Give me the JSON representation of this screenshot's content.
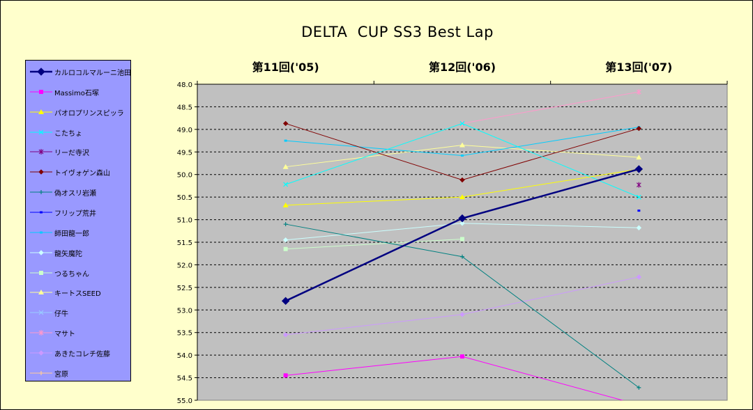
{
  "chart_data": {
    "type": "line",
    "title": "DELTA  CUP SS3 Best Lap",
    "categories": [
      "第11回('05)",
      "第12回('06)",
      "第13回('07)"
    ],
    "ylim": [
      48.0,
      55.0
    ],
    "y_reversed": true,
    "y_ticks": [
      "48.0",
      "48.5",
      "49.0",
      "49.5",
      "50.0",
      "50.5",
      "51.0",
      "51.5",
      "52.0",
      "52.5",
      "53.0",
      "53.5",
      "54.0",
      "54.5",
      "55.0"
    ],
    "grid": "dashed horizontal",
    "legend_position": "left",
    "series": [
      {
        "name": "カルロコルマルーニ池田",
        "values": [
          52.8,
          50.97,
          49.88
        ],
        "color": "#000080",
        "marker": "diamond",
        "width": 2.5
      },
      {
        "name": "Massimo石塚",
        "values": [
          54.45,
          54.03,
          55.1
        ],
        "color": "#ff00ff",
        "marker": "square",
        "width": 1
      },
      {
        "name": "パオロプリンスピッラ",
        "values": [
          50.68,
          50.5,
          49.88
        ],
        "color": "#ffff00",
        "marker": "triangle",
        "width": 1
      },
      {
        "name": "こたちょ",
        "values": [
          50.22,
          48.87,
          50.5
        ],
        "color": "#00ffff",
        "marker": "x",
        "width": 1
      },
      {
        "name": "リーだ寺沢",
        "values": [
          null,
          null,
          50.23
        ],
        "color": "#800080",
        "marker": "star",
        "width": 1
      },
      {
        "name": "トイヴォゲン森山",
        "values": [
          48.87,
          50.12,
          48.98
        ],
        "color": "#800000",
        "marker": "diamond",
        "width": 1
      },
      {
        "name": "偽オスリ岩瀬",
        "values": [
          51.1,
          51.82,
          54.72
        ],
        "color": "#008080",
        "marker": "plus",
        "width": 1
      },
      {
        "name": "フリップ荒井",
        "values": [
          null,
          null,
          50.8
        ],
        "color": "#0000ff",
        "marker": "dash",
        "width": 1
      },
      {
        "name": "師田龍一郎",
        "values": [
          49.25,
          49.58,
          48.95
        ],
        "color": "#00ccff",
        "marker": "dash",
        "width": 1
      },
      {
        "name": "龍矢魔陀",
        "values": [
          51.45,
          51.08,
          51.18
        ],
        "color": "#ccffff",
        "marker": "diamond",
        "width": 1
      },
      {
        "name": "つるちゃん",
        "values": [
          51.65,
          51.43,
          null
        ],
        "color": "#ccffcc",
        "marker": "square",
        "width": 1
      },
      {
        "name": "キートスSEED",
        "values": [
          49.83,
          49.35,
          49.62
        ],
        "color": "#ffff99",
        "marker": "triangle",
        "width": 1
      },
      {
        "name": "仔牛",
        "values": [
          null,
          null,
          null
        ],
        "color": "#99ccff",
        "marker": "x",
        "width": 1
      },
      {
        "name": "マサト",
        "values": [
          null,
          48.87,
          48.17
        ],
        "color": "#ff99cc",
        "marker": "star",
        "width": 1
      },
      {
        "name": "あきたコレチ佐藤",
        "values": [
          53.55,
          53.1,
          52.27
        ],
        "color": "#cc99ff",
        "marker": "diamond",
        "width": 1
      },
      {
        "name": "宮原",
        "values": [
          null,
          null,
          null
        ],
        "color": "#ffcc99",
        "marker": "plus",
        "width": 1
      }
    ]
  }
}
